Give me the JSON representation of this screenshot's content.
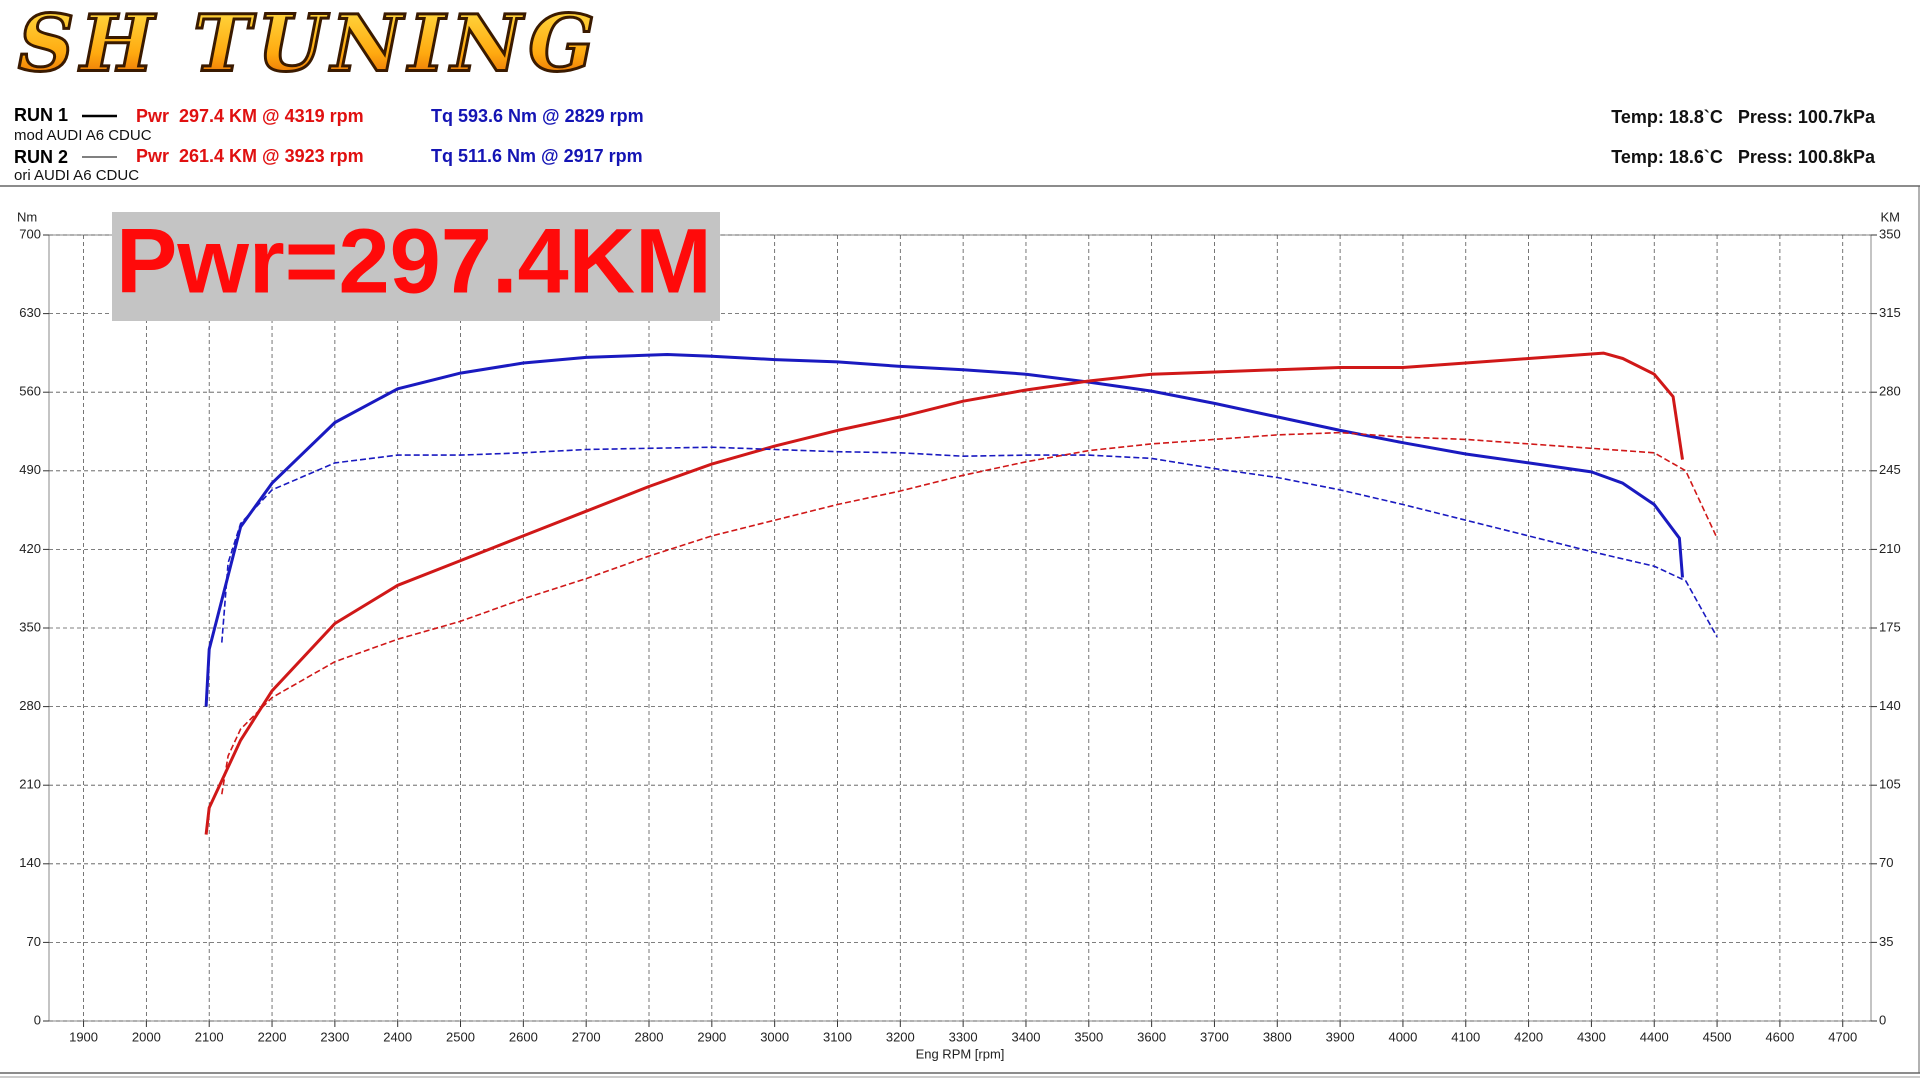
{
  "header": {
    "logo": "SH TUNING",
    "runs": [
      {
        "run": "RUN 1",
        "vehicle": "mod AUDI A6 CDUC",
        "power": "Pwr  297.4 KM @ 4319 rpm",
        "torque": "Tq 593.6 Nm @ 2829 rpm",
        "conditions": "Temp: 18.8`C   Press: 100.7kPa"
      },
      {
        "run": "RUN 2",
        "vehicle": "ori AUDI A6 CDUC",
        "power": "Pwr  261.4 KM @ 3923 rpm",
        "torque": "Tq 511.6 Nm @ 2917 rpm",
        "conditions": "Temp: 18.6`C   Press: 100.8kPa"
      }
    ]
  },
  "chart_data": {
    "type": "line",
    "annotation": "Pwr=297.4KM",
    "xlabel": "Eng RPM [rpm]",
    "ylabel": "Nm",
    "y2label": "KM",
    "xlim": [
      1845,
      4745
    ],
    "ylim": [
      0,
      700
    ],
    "y2lim": [
      0,
      350
    ],
    "xticks": [
      1900,
      2000,
      2100,
      2200,
      2300,
      2400,
      2500,
      2600,
      2700,
      2800,
      2900,
      3000,
      3100,
      3200,
      3300,
      3400,
      3500,
      3600,
      3700,
      3800,
      3900,
      4000,
      4100,
      4200,
      4300,
      4400,
      4500,
      4600,
      4700
    ],
    "yticks": [
      0,
      70,
      140,
      210,
      280,
      350,
      420,
      490,
      560,
      630,
      700
    ],
    "y2ticks": [
      0,
      35,
      70,
      105,
      140,
      175,
      210,
      245,
      280,
      315,
      350
    ],
    "grid": true,
    "series": [
      {
        "color": "#1a1ac0",
        "dash": false,
        "x": [
          2095,
          2100,
          2150,
          2200,
          2300,
          2400,
          2500,
          2600,
          2700,
          2800,
          2829,
          2900,
          3000,
          3100,
          3200,
          3300,
          3400,
          3500,
          3600,
          3700,
          3800,
          3900,
          4000,
          4100,
          4200,
          4300,
          4350,
          4400,
          4440,
          4445
        ],
        "values": [
          280,
          331,
          440,
          479,
          533,
          563,
          577,
          586,
          591,
          593,
          593.6,
          592,
          589,
          587,
          583,
          580,
          576,
          569,
          561,
          550,
          538,
          526,
          515,
          505,
          497,
          489,
          479,
          460,
          430,
          395
        ]
      },
      {
        "color": "#d01818",
        "dash": false,
        "axis": "y2",
        "x": [
          2095,
          2100,
          2150,
          2200,
          2300,
          2400,
          2500,
          2600,
          2700,
          2800,
          2900,
          3000,
          3100,
          3200,
          3300,
          3400,
          3500,
          3600,
          3700,
          3800,
          3900,
          4000,
          4100,
          4200,
          4300,
          4319,
          4350,
          4400,
          4430,
          4445
        ],
        "values": [
          83,
          95,
          125,
          147,
          177,
          194,
          205,
          216,
          227,
          238,
          248,
          256,
          263,
          269,
          276,
          281,
          285,
          288,
          289,
          290,
          291,
          291,
          293,
          295,
          297,
          297.4,
          295,
          288,
          278,
          250
        ]
      },
      {
        "color": "#1a1ac0",
        "dash": true,
        "x": [
          2120,
          2130,
          2150,
          2200,
          2300,
          2400,
          2500,
          2600,
          2700,
          2800,
          2900,
          3000,
          3100,
          3200,
          3300,
          3400,
          3500,
          3600,
          3700,
          3800,
          3900,
          4000,
          4100,
          4200,
          4300,
          4400,
          4450,
          4500
        ],
        "values": [
          337,
          408,
          443,
          473,
          497,
          504,
          504,
          506,
          509,
          510,
          511,
          509,
          507,
          506,
          503,
          504,
          504,
          501,
          492,
          484,
          473,
          460,
          446,
          432,
          418,
          405,
          392,
          342
        ]
      },
      {
        "color": "#d01818",
        "dash": true,
        "axis": "y2",
        "x": [
          2120,
          2130,
          2150,
          2200,
          2300,
          2400,
          2500,
          2600,
          2700,
          2800,
          2900,
          3000,
          3100,
          3200,
          3300,
          3400,
          3500,
          3600,
          3700,
          3800,
          3900,
          4000,
          4100,
          4200,
          4300,
          4400,
          4450,
          4500
        ],
        "values": [
          101,
          118,
          130,
          144,
          160,
          170,
          178,
          188,
          197,
          207,
          216,
          223,
          230,
          236,
          243,
          249,
          254,
          257,
          259,
          261,
          262,
          260,
          259,
          257,
          255,
          253,
          245,
          215
        ]
      }
    ]
  }
}
